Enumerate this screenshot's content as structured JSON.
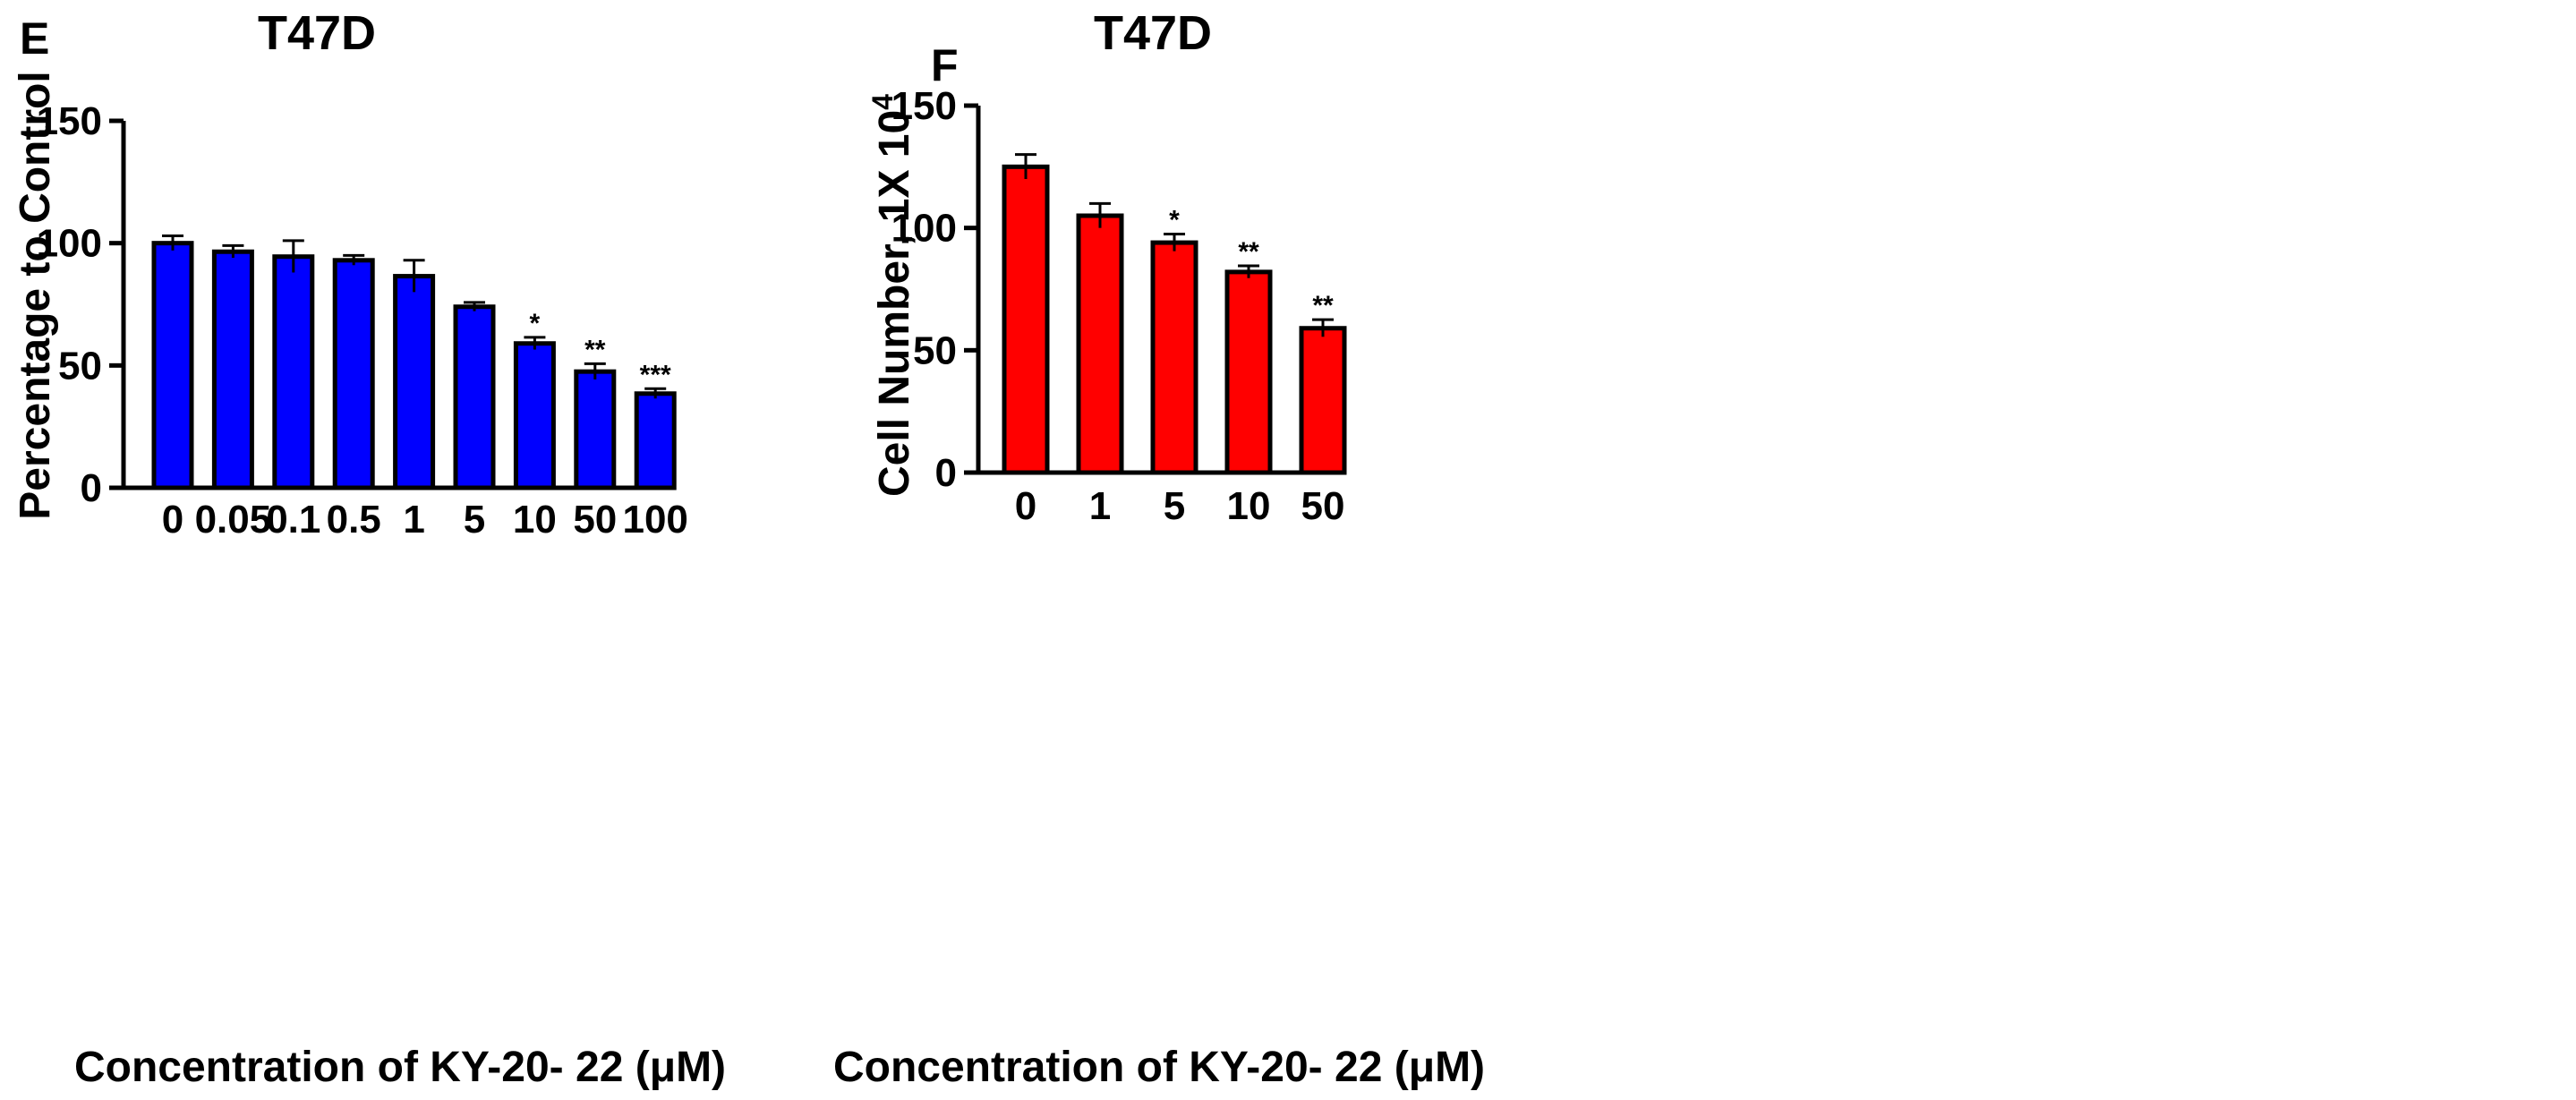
{
  "chart_data": [
    {
      "type": "bar",
      "panel": "E",
      "title": "T47D",
      "xlabel": "Concentration of KY-20- 22  (μM)",
      "ylabel": "Percentage to Control",
      "categories": [
        "0",
        "0.05",
        "0.1",
        "0.5",
        "1",
        "5",
        "10",
        "50",
        "100"
      ],
      "values": [
        100,
        96.5,
        94.5,
        93,
        86.5,
        74,
        59,
        47.5,
        38.5
      ],
      "errors": [
        3,
        2.5,
        6.5,
        2,
        6.5,
        1.8,
        2.5,
        3.2,
        2
      ],
      "significance": [
        "",
        "",
        "",
        "",
        "",
        "",
        "*",
        "**",
        "***"
      ],
      "ylim": [
        0,
        150
      ],
      "yticks": [
        0,
        50,
        100,
        150
      ],
      "color": "#0000ff",
      "grid": false,
      "legend": "none"
    },
    {
      "type": "bar",
      "panel": "F",
      "title": "T47D",
      "xlabel": "Concentration of KY-20- 22  (μM)",
      "ylabel": "Cell Number, 1X 10",
      "ylabel_superscript": "4",
      "categories": [
        "0",
        "1",
        "5",
        "10",
        "50"
      ],
      "values": [
        125,
        105,
        94,
        82,
        59
      ],
      "errors": [
        5,
        5,
        3.5,
        2.5,
        3.5
      ],
      "significance": [
        "",
        "",
        "*",
        "**",
        "**"
      ],
      "ylim": [
        0,
        150
      ],
      "yticks": [
        0,
        50,
        100,
        150
      ],
      "color": "#ff0000",
      "grid": false,
      "legend": "none"
    }
  ]
}
